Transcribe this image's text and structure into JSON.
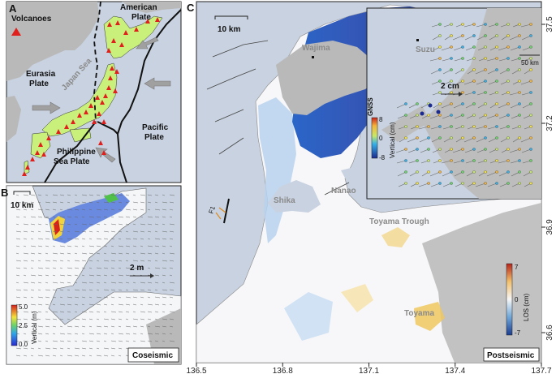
{
  "panels": {
    "a": {
      "letter": "A",
      "legend_label": "Volcanoes",
      "plates": [
        "American",
        "Plate",
        "Eurasia",
        "Plate",
        "Pacific",
        "Plate",
        "Philippine",
        "Sea Plate"
      ],
      "sea_label": "Japan Sea"
    },
    "b": {
      "letter": "B",
      "scalebar": "10 km",
      "vector_scale": "2 m",
      "colorbar": {
        "ticks": [
          "5.0",
          "2.5",
          "0.0"
        ],
        "label": "Vertical (m)"
      },
      "tag": "Coseismic"
    },
    "c": {
      "letter": "C",
      "scalebar": "10 km",
      "places": [
        "Wajima",
        "Suzu",
        "Shika",
        "Nanao",
        "Toyama",
        "Toyama Trough"
      ],
      "inset": {
        "colorbar": {
          "ticks": [
            "8",
            "0",
            "-8"
          ],
          "title": "GNSS",
          "label": "Vertical (cm)"
        },
        "vector_scale": "2 cm",
        "scalebar": "50 km"
      },
      "colorbar": {
        "ticks": [
          "7",
          "0",
          "-7"
        ],
        "label": "LOS (cm)"
      },
      "tag": "Postseismic",
      "x_ticks": [
        "136.5",
        "136.8",
        "137.1",
        "137.4",
        "137.7"
      ],
      "y_ticks": [
        "37.5",
        "37.2",
        "36.9",
        "36.6"
      ],
      "fault_label": "F1"
    }
  },
  "colors": {
    "sea": "#c8d2e0",
    "land_gray": "#b9b9b9",
    "japan_fill": "#c8f07a",
    "volcano": "#e0201c"
  }
}
